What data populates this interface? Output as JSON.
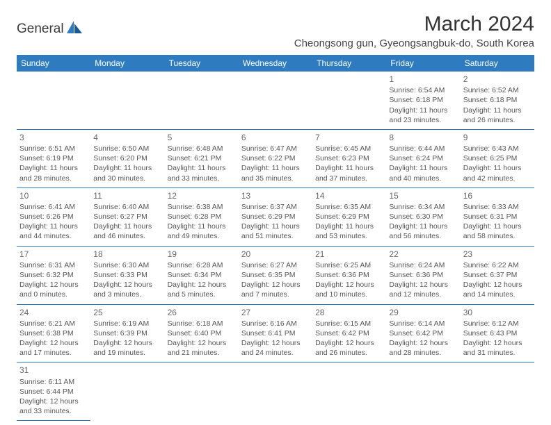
{
  "logo": {
    "text": "General",
    "accent": "Blue",
    "color": "#2e7bbf"
  },
  "title": "March 2024",
  "location": "Cheongsong gun, Gyeongsangbuk-do, South Korea",
  "colors": {
    "header_bg": "#2e7bbf",
    "header_text": "#ffffff",
    "border": "#2e7bbf",
    "text": "#555555",
    "daynum": "#666666",
    "background": "#ffffff"
  },
  "fonts": {
    "title_size": 30,
    "location_size": 15,
    "header_size": 12,
    "cell_size": 10.5
  },
  "weekdays": [
    "Sunday",
    "Monday",
    "Tuesday",
    "Wednesday",
    "Thursday",
    "Friday",
    "Saturday"
  ],
  "weeks": [
    [
      null,
      null,
      null,
      null,
      null,
      {
        "d": "1",
        "sr": "Sunrise: 6:54 AM",
        "ss": "Sunset: 6:18 PM",
        "dl1": "Daylight: 11 hours",
        "dl2": "and 23 minutes."
      },
      {
        "d": "2",
        "sr": "Sunrise: 6:52 AM",
        "ss": "Sunset: 6:18 PM",
        "dl1": "Daylight: 11 hours",
        "dl2": "and 26 minutes."
      }
    ],
    [
      {
        "d": "3",
        "sr": "Sunrise: 6:51 AM",
        "ss": "Sunset: 6:19 PM",
        "dl1": "Daylight: 11 hours",
        "dl2": "and 28 minutes."
      },
      {
        "d": "4",
        "sr": "Sunrise: 6:50 AM",
        "ss": "Sunset: 6:20 PM",
        "dl1": "Daylight: 11 hours",
        "dl2": "and 30 minutes."
      },
      {
        "d": "5",
        "sr": "Sunrise: 6:48 AM",
        "ss": "Sunset: 6:21 PM",
        "dl1": "Daylight: 11 hours",
        "dl2": "and 33 minutes."
      },
      {
        "d": "6",
        "sr": "Sunrise: 6:47 AM",
        "ss": "Sunset: 6:22 PM",
        "dl1": "Daylight: 11 hours",
        "dl2": "and 35 minutes."
      },
      {
        "d": "7",
        "sr": "Sunrise: 6:45 AM",
        "ss": "Sunset: 6:23 PM",
        "dl1": "Daylight: 11 hours",
        "dl2": "and 37 minutes."
      },
      {
        "d": "8",
        "sr": "Sunrise: 6:44 AM",
        "ss": "Sunset: 6:24 PM",
        "dl1": "Daylight: 11 hours",
        "dl2": "and 40 minutes."
      },
      {
        "d": "9",
        "sr": "Sunrise: 6:43 AM",
        "ss": "Sunset: 6:25 PM",
        "dl1": "Daylight: 11 hours",
        "dl2": "and 42 minutes."
      }
    ],
    [
      {
        "d": "10",
        "sr": "Sunrise: 6:41 AM",
        "ss": "Sunset: 6:26 PM",
        "dl1": "Daylight: 11 hours",
        "dl2": "and 44 minutes."
      },
      {
        "d": "11",
        "sr": "Sunrise: 6:40 AM",
        "ss": "Sunset: 6:27 PM",
        "dl1": "Daylight: 11 hours",
        "dl2": "and 46 minutes."
      },
      {
        "d": "12",
        "sr": "Sunrise: 6:38 AM",
        "ss": "Sunset: 6:28 PM",
        "dl1": "Daylight: 11 hours",
        "dl2": "and 49 minutes."
      },
      {
        "d": "13",
        "sr": "Sunrise: 6:37 AM",
        "ss": "Sunset: 6:29 PM",
        "dl1": "Daylight: 11 hours",
        "dl2": "and 51 minutes."
      },
      {
        "d": "14",
        "sr": "Sunrise: 6:35 AM",
        "ss": "Sunset: 6:29 PM",
        "dl1": "Daylight: 11 hours",
        "dl2": "and 53 minutes."
      },
      {
        "d": "15",
        "sr": "Sunrise: 6:34 AM",
        "ss": "Sunset: 6:30 PM",
        "dl1": "Daylight: 11 hours",
        "dl2": "and 56 minutes."
      },
      {
        "d": "16",
        "sr": "Sunrise: 6:33 AM",
        "ss": "Sunset: 6:31 PM",
        "dl1": "Daylight: 11 hours",
        "dl2": "and 58 minutes."
      }
    ],
    [
      {
        "d": "17",
        "sr": "Sunrise: 6:31 AM",
        "ss": "Sunset: 6:32 PM",
        "dl1": "Daylight: 12 hours",
        "dl2": "and 0 minutes."
      },
      {
        "d": "18",
        "sr": "Sunrise: 6:30 AM",
        "ss": "Sunset: 6:33 PM",
        "dl1": "Daylight: 12 hours",
        "dl2": "and 3 minutes."
      },
      {
        "d": "19",
        "sr": "Sunrise: 6:28 AM",
        "ss": "Sunset: 6:34 PM",
        "dl1": "Daylight: 12 hours",
        "dl2": "and 5 minutes."
      },
      {
        "d": "20",
        "sr": "Sunrise: 6:27 AM",
        "ss": "Sunset: 6:35 PM",
        "dl1": "Daylight: 12 hours",
        "dl2": "and 7 minutes."
      },
      {
        "d": "21",
        "sr": "Sunrise: 6:25 AM",
        "ss": "Sunset: 6:36 PM",
        "dl1": "Daylight: 12 hours",
        "dl2": "and 10 minutes."
      },
      {
        "d": "22",
        "sr": "Sunrise: 6:24 AM",
        "ss": "Sunset: 6:36 PM",
        "dl1": "Daylight: 12 hours",
        "dl2": "and 12 minutes."
      },
      {
        "d": "23",
        "sr": "Sunrise: 6:22 AM",
        "ss": "Sunset: 6:37 PM",
        "dl1": "Daylight: 12 hours",
        "dl2": "and 14 minutes."
      }
    ],
    [
      {
        "d": "24",
        "sr": "Sunrise: 6:21 AM",
        "ss": "Sunset: 6:38 PM",
        "dl1": "Daylight: 12 hours",
        "dl2": "and 17 minutes."
      },
      {
        "d": "25",
        "sr": "Sunrise: 6:19 AM",
        "ss": "Sunset: 6:39 PM",
        "dl1": "Daylight: 12 hours",
        "dl2": "and 19 minutes."
      },
      {
        "d": "26",
        "sr": "Sunrise: 6:18 AM",
        "ss": "Sunset: 6:40 PM",
        "dl1": "Daylight: 12 hours",
        "dl2": "and 21 minutes."
      },
      {
        "d": "27",
        "sr": "Sunrise: 6:16 AM",
        "ss": "Sunset: 6:41 PM",
        "dl1": "Daylight: 12 hours",
        "dl2": "and 24 minutes."
      },
      {
        "d": "28",
        "sr": "Sunrise: 6:15 AM",
        "ss": "Sunset: 6:42 PM",
        "dl1": "Daylight: 12 hours",
        "dl2": "and 26 minutes."
      },
      {
        "d": "29",
        "sr": "Sunrise: 6:14 AM",
        "ss": "Sunset: 6:42 PM",
        "dl1": "Daylight: 12 hours",
        "dl2": "and 28 minutes."
      },
      {
        "d": "30",
        "sr": "Sunrise: 6:12 AM",
        "ss": "Sunset: 6:43 PM",
        "dl1": "Daylight: 12 hours",
        "dl2": "and 31 minutes."
      }
    ],
    [
      {
        "d": "31",
        "sr": "Sunrise: 6:11 AM",
        "ss": "Sunset: 6:44 PM",
        "dl1": "Daylight: 12 hours",
        "dl2": "and 33 minutes."
      },
      null,
      null,
      null,
      null,
      null,
      null
    ]
  ]
}
